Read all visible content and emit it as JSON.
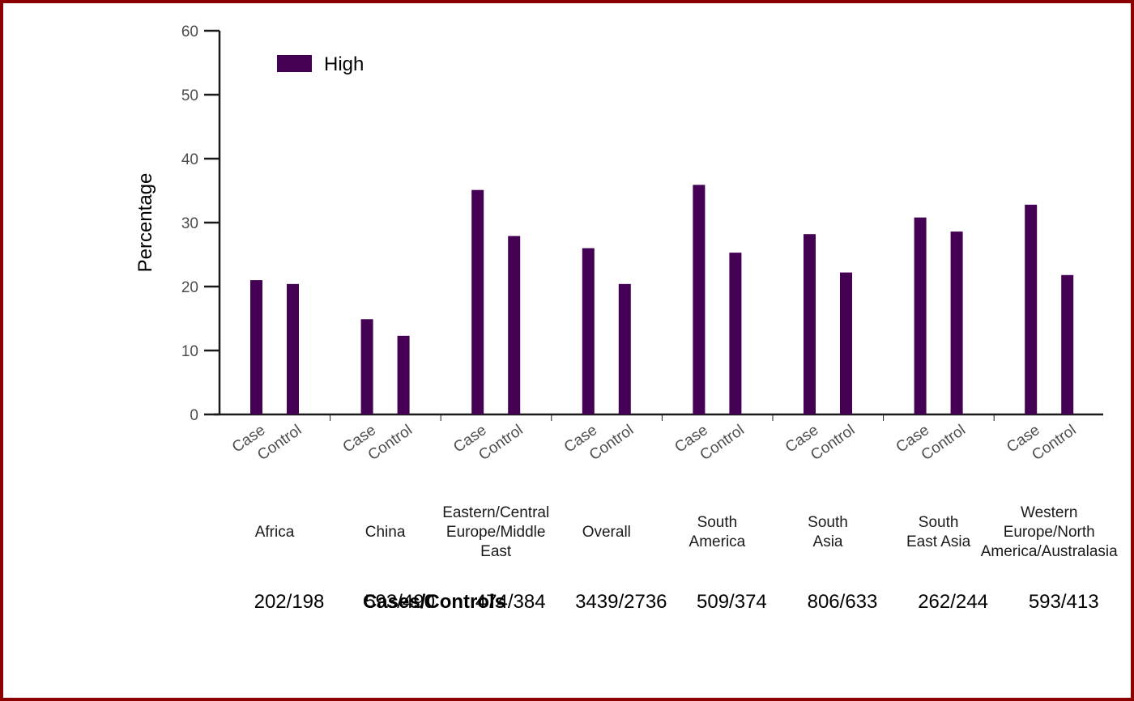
{
  "chart_data": {
    "type": "bar",
    "ylabel": "Percentage",
    "ylim": [
      0,
      60
    ],
    "yticks": [
      "0",
      "10",
      "20",
      "30",
      "40",
      "50",
      "60"
    ],
    "legend": [
      {
        "name": "High",
        "color": "#440154"
      }
    ],
    "legend_position": "top-left",
    "bar_color": "#440154",
    "groups": [
      {
        "region": [
          "Africa"
        ],
        "counts": "202/198",
        "bars": [
          {
            "label": "Case",
            "value": 21.0
          },
          {
            "label": "Control",
            "value": 20.4
          }
        ]
      },
      {
        "region": [
          "China"
        ],
        "counts": "593/490",
        "bars": [
          {
            "label": "Case",
            "value": 14.9
          },
          {
            "label": "Control",
            "value": 12.3
          }
        ]
      },
      {
        "region": [
          "Eastern/Central",
          "Europe/Middle",
          "East"
        ],
        "counts": "474/384",
        "bars": [
          {
            "label": "Case",
            "value": 35.1
          },
          {
            "label": "Control",
            "value": 27.9
          }
        ]
      },
      {
        "region": [
          "Overall"
        ],
        "counts": "3439/2736",
        "bars": [
          {
            "label": "Case",
            "value": 26.0
          },
          {
            "label": "Control",
            "value": 20.4
          }
        ]
      },
      {
        "region": [
          "South",
          "America"
        ],
        "counts": "509/374",
        "bars": [
          {
            "label": "Case",
            "value": 35.9
          },
          {
            "label": "Control",
            "value": 25.3
          }
        ]
      },
      {
        "region": [
          "South",
          "Asia"
        ],
        "counts": "806/633",
        "bars": [
          {
            "label": "Case",
            "value": 28.2
          },
          {
            "label": "Control",
            "value": 22.2
          }
        ]
      },
      {
        "region": [
          "South",
          "East Asia"
        ],
        "counts": "262/244",
        "bars": [
          {
            "label": "Case",
            "value": 30.8
          },
          {
            "label": "Control",
            "value": 28.6
          }
        ]
      },
      {
        "region": [
          "Western",
          "Europe/North",
          "America/Australasia"
        ],
        "counts": "593/413",
        "bars": [
          {
            "label": "Case",
            "value": 32.8
          },
          {
            "label": "Control",
            "value": 21.8
          }
        ]
      }
    ],
    "counts_label": "Cases/Controls"
  }
}
